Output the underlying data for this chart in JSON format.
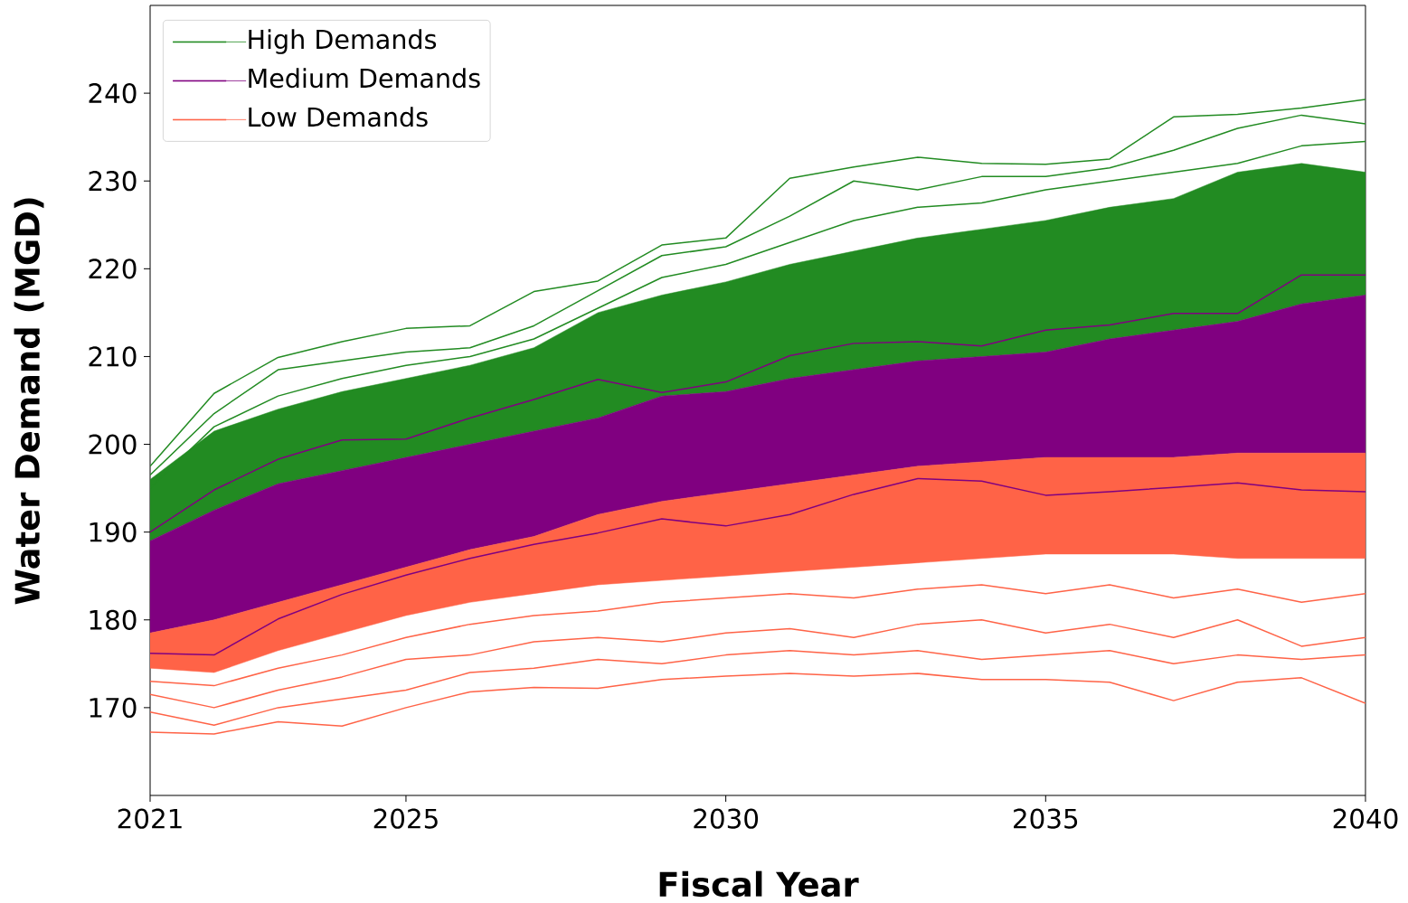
{
  "chart_data": {
    "type": "line",
    "xlabel": "Fiscal Year",
    "ylabel": "Water Demand (MGD)",
    "x": [
      2021,
      2022,
      2023,
      2024,
      2025,
      2026,
      2027,
      2028,
      2029,
      2030,
      2031,
      2032,
      2033,
      2034,
      2035,
      2036,
      2037,
      2038,
      2039,
      2040
    ],
    "xlim": [
      2021,
      2040
    ],
    "xticks": [
      2021,
      2025,
      2030,
      2035,
      2040
    ],
    "ylim": [
      160,
      250
    ],
    "yticks": [
      170,
      180,
      190,
      200,
      210,
      220,
      230,
      240
    ],
    "legend": "top left",
    "series": [
      {
        "name": "High Demands",
        "color": "#228b22",
        "values": [
          197.5,
          205.8,
          209.9,
          211.7,
          213.2,
          213.5,
          217.4,
          218.6,
          222.7,
          223.5,
          230.3,
          231.6,
          232.7,
          232.0,
          231.9,
          232.5,
          237.3,
          237.6,
          238.3,
          239.3
        ],
        "lower": [
          189,
          192.5,
          195.5,
          197,
          198.5,
          200,
          201.5,
          203,
          205.5,
          206,
          207.5,
          208.5,
          209.5,
          210,
          210.5,
          212,
          213,
          214,
          216,
          217
        ],
        "upper": [
          196,
          201.5,
          204,
          206,
          207.5,
          209,
          211,
          215,
          217,
          218.5,
          220.5,
          222,
          223.5,
          224.5,
          225.5,
          227,
          228,
          231,
          232,
          231
        ]
      },
      {
        "name": "Medium Demands",
        "color": "#800080",
        "values": [
          176.2,
          176.0,
          180.1,
          182.9,
          185.1,
          187.0,
          188.6,
          189.9,
          191.5,
          190.7,
          192.0,
          194.3,
          196.1,
          195.8,
          194.2,
          194.6,
          195.1,
          195.6,
          194.8,
          194.6
        ],
        "lower": [
          178.5,
          180,
          182,
          184,
          186,
          188,
          189.5,
          192,
          193.5,
          194.5,
          195.5,
          196.5,
          197.5,
          198,
          198.5,
          198.5,
          198.5,
          199,
          199,
          199
        ],
        "upper": [
          189,
          192.5,
          195.5,
          197,
          198.5,
          200,
          201.5,
          203,
          205.5,
          206,
          207.5,
          208.5,
          209.5,
          210,
          210.5,
          212,
          213,
          214,
          216,
          217
        ]
      },
      {
        "color": "#800080",
        "values": [
          190.0,
          194.8,
          198.3,
          200.5,
          200.6,
          203.0,
          205.1,
          207.4,
          205.9,
          207.1,
          210.1,
          211.5,
          211.7,
          211.2,
          213.0,
          213.6,
          214.9,
          214.9,
          219.3,
          219.3
        ]
      },
      {
        "name": "Low Demands",
        "color": "#ff6347",
        "values": [
          167.2,
          167.0,
          168.4,
          167.9,
          170.0,
          171.8,
          172.3,
          172.2,
          173.2,
          173.6,
          173.9,
          173.6,
          173.9,
          173.2,
          173.2,
          172.9,
          170.8,
          172.9,
          173.4,
          170.5
        ],
        "lower": [
          174.5,
          174,
          176.5,
          178.5,
          180.5,
          182,
          183,
          184,
          184.5,
          185,
          185.5,
          186,
          186.5,
          187,
          187.5,
          187.5,
          187.5,
          187,
          187,
          187
        ],
        "upper": [
          178.5,
          180,
          182,
          184,
          186,
          188,
          189.5,
          192,
          193.5,
          194.5,
          195.5,
          196.5,
          197.5,
          198,
          198.5,
          198.5,
          198.5,
          199,
          199,
          199
        ]
      },
      {
        "color": "#228b22",
        "values": [
          196.5,
          203.5,
          208.5,
          209.5,
          210.5,
          211,
          213.5,
          217.5,
          221.5,
          222.5,
          226,
          230,
          229,
          230.5,
          230.5,
          231.5,
          233.5,
          236,
          237.5,
          236.5
        ]
      },
      {
        "color": "#228b22",
        "values": [
          195,
          202,
          205.5,
          207.5,
          209,
          210,
          212,
          215.5,
          219,
          220.5,
          223,
          225.5,
          227,
          227.5,
          229,
          230,
          231,
          232,
          234,
          234.5
        ]
      },
      {
        "color": "#ff6347",
        "values": [
          173,
          172.5,
          174.5,
          176,
          178,
          179.5,
          180.5,
          181,
          182,
          182.5,
          183,
          182.5,
          183.5,
          184,
          183,
          184,
          182.5,
          183.5,
          182,
          183
        ]
      },
      {
        "color": "#ff6347",
        "values": [
          171.5,
          170,
          172,
          173.5,
          175.5,
          176,
          177.5,
          178,
          177.5,
          178.5,
          179,
          178,
          179.5,
          180,
          178.5,
          179.5,
          178,
          180,
          177,
          178
        ]
      },
      {
        "color": "#ff6347",
        "values": [
          169.5,
          168,
          170,
          171,
          172,
          174,
          174.5,
          175.5,
          175,
          176,
          176.5,
          176,
          176.5,
          175.5,
          176,
          176.5,
          175,
          176,
          175.5,
          176
        ]
      }
    ]
  }
}
